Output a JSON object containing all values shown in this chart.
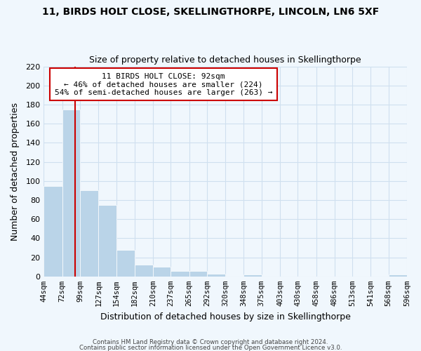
{
  "title1": "11, BIRDS HOLT CLOSE, SKELLINGTHORPE, LINCOLN, LN6 5XF",
  "title2": "Size of property relative to detached houses in Skellingthorpe",
  "xlabel": "Distribution of detached houses by size in Skellingthorpe",
  "ylabel": "Number of detached properties",
  "bar_values": [
    95,
    175,
    90,
    75,
    28,
    12,
    10,
    6,
    6,
    3,
    0,
    2,
    0,
    0,
    0,
    0,
    0,
    0,
    0,
    2
  ],
  "bin_edges": [
    44,
    72,
    99,
    127,
    154,
    182,
    210,
    237,
    265,
    292,
    320,
    348,
    375,
    403,
    430,
    458,
    486,
    513,
    541,
    568,
    596
  ],
  "tick_labels": [
    "44sqm",
    "72sqm",
    "99sqm",
    "127sqm",
    "154sqm",
    "182sqm",
    "210sqm",
    "237sqm",
    "265sqm",
    "292sqm",
    "320sqm",
    "348sqm",
    "375sqm",
    "403sqm",
    "430sqm",
    "458sqm",
    "486sqm",
    "513sqm",
    "541sqm",
    "568sqm",
    "596sqm"
  ],
  "bar_color": "#bad4e8",
  "grid_color": "#cfe0ef",
  "vline_x": 92,
  "vline_color": "#cc0000",
  "ylim": [
    0,
    220
  ],
  "yticks": [
    0,
    20,
    40,
    60,
    80,
    100,
    120,
    140,
    160,
    180,
    200,
    220
  ],
  "annotation_line1": "11 BIRDS HOLT CLOSE: 92sqm",
  "annotation_line2": "← 46% of detached houses are smaller (224)",
  "annotation_line3": "54% of semi-detached houses are larger (263) →",
  "footer1": "Contains HM Land Registry data © Crown copyright and database right 2024.",
  "footer2": "Contains public sector information licensed under the Open Government Licence v3.0.",
  "background_color": "#f0f7fd"
}
